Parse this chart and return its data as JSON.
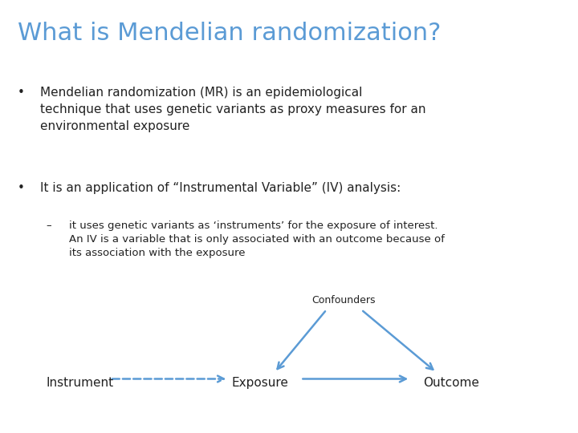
{
  "background_color": "#ffffff",
  "title": "What is Mendelian randomization?",
  "title_color": "#5b9bd5",
  "title_fontsize": 22,
  "body_color": "#222222",
  "bullet1": "Mendelian randomization (MR) is an epidemiological\ntechnique that uses genetic variants as proxy measures for an\nenvironmental exposure",
  "bullet2": "It is an application of “Instrumental Variable” (IV) analysis:",
  "sub_bullet": "it uses genetic variants as ‘instruments’ for the exposure of interest.\nAn IV is a variable that is only associated with an outcome because of\nits association with the exposure",
  "bullet_fontsize": 11,
  "sub_bullet_fontsize": 9.5,
  "diagram_color": "#5b9bd5",
  "label_instrument": "Instrument",
  "label_exposure": "Exposure",
  "label_outcome": "Outcome",
  "label_confounders": "Confounders",
  "diagram_fontsize": 11,
  "confounders_fontsize": 9
}
